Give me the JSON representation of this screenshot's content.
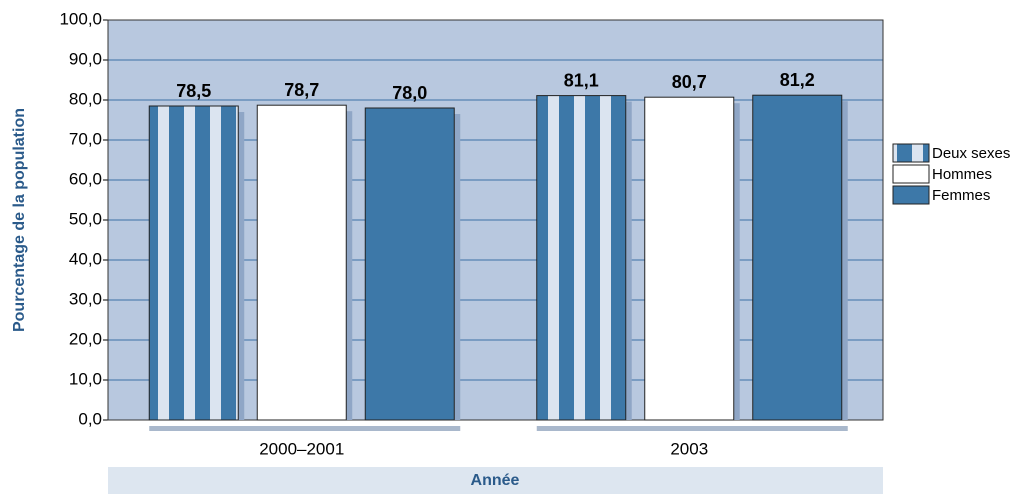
{
  "chart_data": {
    "type": "bar",
    "ylabel": "Pourcentage de la population",
    "xlabel": "Année",
    "categories": [
      "2000–2001",
      "2003"
    ],
    "series": [
      {
        "name": "Deux sexes",
        "color": "#3d78a8",
        "pattern": "stripes",
        "values": [
          78.5,
          81.1
        ],
        "value_labels": [
          "78,5",
          "81,1"
        ]
      },
      {
        "name": "Hommes",
        "color": "#ffffff",
        "values": [
          78.7,
          80.7
        ],
        "value_labels": [
          "78,7",
          "80,7"
        ]
      },
      {
        "name": "Femmes",
        "color": "#3d78a8",
        "values": [
          78.0,
          81.2
        ],
        "value_labels": [
          "78,0",
          "81,2"
        ]
      }
    ],
    "ylim": [
      0,
      100
    ],
    "yticks": [
      {
        "value": 0,
        "label": "0,0"
      },
      {
        "value": 10,
        "label": "10,0"
      },
      {
        "value": 20,
        "label": "20,0"
      },
      {
        "value": 30,
        "label": "30,0"
      },
      {
        "value": 40,
        "label": "40,0"
      },
      {
        "value": 50,
        "label": "50,0"
      },
      {
        "value": 60,
        "label": "60,0"
      },
      {
        "value": 70,
        "label": "70,0"
      },
      {
        "value": 80,
        "label": "80,0"
      },
      {
        "value": 90,
        "label": "90,0"
      },
      {
        "value": 100,
        "label": "100,0"
      }
    ],
    "grid": true
  }
}
